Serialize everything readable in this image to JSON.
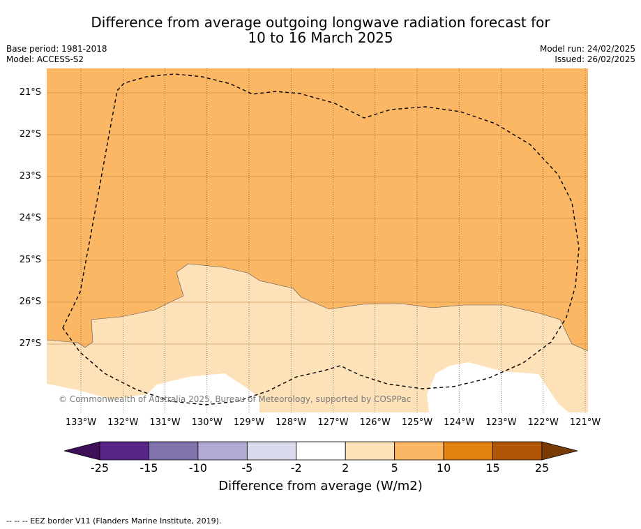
{
  "title": {
    "line1": "Difference from average outgoing longwave radiation forecast for",
    "line2": "10 to 16 March 2025"
  },
  "meta": {
    "base_period": "Base period: 1981-2018",
    "model": "Model: ACCESS-S2",
    "model_run": "Model run: 24/02/2025",
    "issued": "Issued: 26/02/2025"
  },
  "map": {
    "lat_labels": [
      "21°S",
      "22°S",
      "23°S",
      "24°S",
      "25°S",
      "26°S",
      "27°S"
    ],
    "lon_labels": [
      "133°W",
      "132°W",
      "131°W",
      "130°W",
      "129°W",
      "128°W",
      "127°W",
      "126°W",
      "125°W",
      "124°W",
      "123°W",
      "122°W",
      "121°W"
    ],
    "copyright": "© Commonwealth of Australia 2025, Bureau of Meteorology, supported by COSPPac",
    "fill_colors": {
      "5_to_10": "#fcb764",
      "2_to_5": "#fde1b8",
      "-2_to_2": "#ffffff"
    }
  },
  "colorbar": {
    "tick_labels": [
      "-25",
      "-15",
      "-10",
      "-5",
      "-2",
      "2",
      "5",
      "10",
      "15",
      "25"
    ],
    "colors": [
      "#3d1059",
      "#562587",
      "#7f72ad",
      "#b2aad3",
      "#d9d9ec",
      "#ffffff",
      "#fde1b8",
      "#fcb764",
      "#e0820f",
      "#b05606",
      "#7a3c05"
    ],
    "title": "Difference from average (W/m2)"
  },
  "footnote": "--  --  -- EEZ border V11 (Flanders Marine Institute, 2019)."
}
